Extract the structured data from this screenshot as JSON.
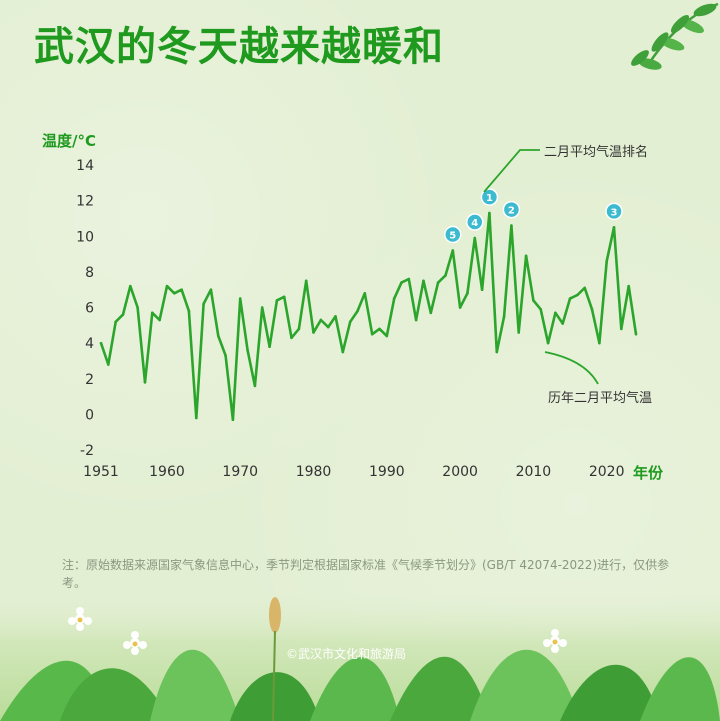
{
  "title": "武汉的冬天越来越暖和",
  "note": "注：原始数据来源国家气象信息中心，季节判定根据国家标准《气候季节划分》(GB/T 42074-2022)进行，仅供参考。",
  "credit": "©武汉市文化和旅游局",
  "colors": {
    "title": "#1f9a1f",
    "line": "#2ba52b",
    "marker": "#3bbad0",
    "axis_text": "#333333"
  },
  "chart_data": {
    "type": "line",
    "ylabel": "温度/°C",
    "xlabel": "年份",
    "ylim": [
      -2,
      14
    ],
    "xlim": [
      1951,
      2024
    ],
    "y_ticks": [
      -2,
      0,
      2,
      4,
      6,
      8,
      10,
      12,
      14
    ],
    "x_ticks": [
      1951,
      1960,
      1970,
      1980,
      1990,
      2000,
      2010,
      2020
    ],
    "grid": false,
    "series": [
      {
        "name": "历年二月平均气温",
        "x": [
          1951,
          1952,
          1953,
          1954,
          1955,
          1956,
          1957,
          1958,
          1959,
          1960,
          1961,
          1962,
          1963,
          1964,
          1965,
          1966,
          1967,
          1968,
          1969,
          1970,
          1971,
          1972,
          1973,
          1974,
          1975,
          1976,
          1977,
          1978,
          1979,
          1980,
          1981,
          1982,
          1983,
          1984,
          1985,
          1986,
          1987,
          1988,
          1989,
          1990,
          1991,
          1992,
          1993,
          1994,
          1995,
          1996,
          1997,
          1998,
          1999,
          2000,
          2001,
          2002,
          2003,
          2004,
          2005,
          2006,
          2007,
          2008,
          2009,
          2010,
          2011,
          2012,
          2013,
          2014,
          2015,
          2016,
          2017,
          2018,
          2019,
          2020,
          2021,
          2022,
          2023,
          2024
        ],
        "y": [
          4.0,
          2.8,
          5.2,
          5.6,
          7.2,
          6.0,
          1.8,
          5.7,
          5.3,
          7.2,
          6.8,
          7.0,
          5.8,
          -0.2,
          6.2,
          7.0,
          4.4,
          3.3,
          -0.3,
          6.5,
          3.6,
          1.6,
          6.0,
          3.8,
          6.4,
          6.6,
          4.3,
          4.8,
          7.5,
          4.6,
          5.3,
          4.9,
          5.5,
          3.5,
          5.2,
          5.8,
          6.8,
          4.5,
          4.8,
          4.4,
          6.5,
          7.4,
          7.6,
          5.3,
          7.5,
          5.7,
          7.4,
          7.8,
          9.2,
          6.0,
          6.8,
          9.9,
          7.0,
          11.3,
          3.5,
          5.5,
          10.6,
          4.6,
          8.9,
          6.4,
          5.9,
          4.0,
          5.7,
          5.1,
          6.5,
          6.7,
          7.1,
          5.9,
          4.0,
          8.6,
          10.5,
          4.8,
          7.2,
          4.5
        ]
      }
    ],
    "rank_markers": [
      {
        "rank": "1",
        "year": 2004,
        "value": 11.3
      },
      {
        "rank": "2",
        "year": 2007,
        "value": 10.6
      },
      {
        "rank": "3",
        "year": 2021,
        "value": 10.5
      },
      {
        "rank": "4",
        "year": 2002,
        "value": 9.9
      },
      {
        "rank": "5",
        "year": 1999,
        "value": 9.2
      }
    ],
    "annotations": [
      {
        "text": "二月平均气温排名",
        "target": "rank_markers"
      },
      {
        "text": "历年二月平均气温",
        "target": "series"
      }
    ]
  }
}
